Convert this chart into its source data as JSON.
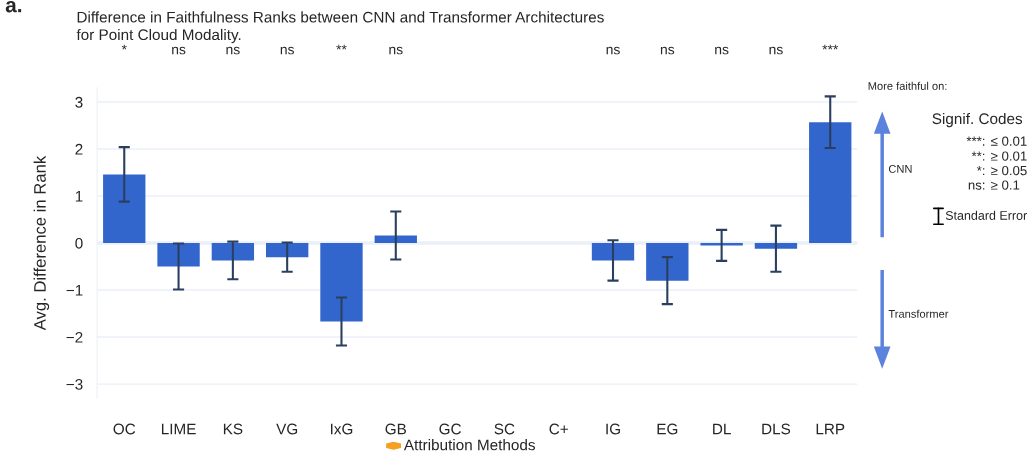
{
  "chart_data": {
    "type": "bar",
    "title": "Difference in Faithfulness Ranks between CNN and Transformer Architectures\nfor Point Cloud Modality.",
    "ylabel": "Avg. Difference in Rank",
    "categories": [
      "OC",
      "LIME",
      "KS",
      "VG",
      "IxG",
      "GB",
      "GC",
      "SC",
      "C+",
      "IG",
      "EG",
      "DL",
      "DLS",
      "LRP"
    ],
    "series": [
      {
        "color": "#3366cc",
        "values": [
          1.46,
          -0.5,
          -0.37,
          -0.3,
          -1.67,
          0.16,
          null,
          null,
          null,
          -0.37,
          -0.8,
          -0.05,
          -0.12,
          2.57
        ],
        "errors": [
          0.58,
          0.49,
          0.4,
          0.31,
          0.51,
          0.51,
          null,
          null,
          null,
          0.43,
          0.5,
          0.33,
          0.49,
          0.55
        ]
      }
    ],
    "ylim": [
      -3.3,
      3.3
    ],
    "yticks": [
      {
        "value": -3,
        "label": "−3"
      },
      {
        "value": -2,
        "label": "−2"
      },
      {
        "value": -1,
        "label": "−1"
      },
      0,
      1,
      2,
      3
    ],
    "grid": "y",
    "annotations": [
      "a.",
      "*",
      "ns",
      "ns",
      "ns",
      "**",
      "ns",
      "ns",
      "ns",
      "ns",
      "ns",
      "***",
      "More faithful on:",
      "CNN",
      "Transformer",
      "Signif. Codes",
      "***: ≤ 0.01",
      "**: ≥ 0.01",
      "*: ≥ 0.05",
      "ns: ≥ 0.1",
      "Standard Error",
      "Attribution Methods"
    ]
  }
}
